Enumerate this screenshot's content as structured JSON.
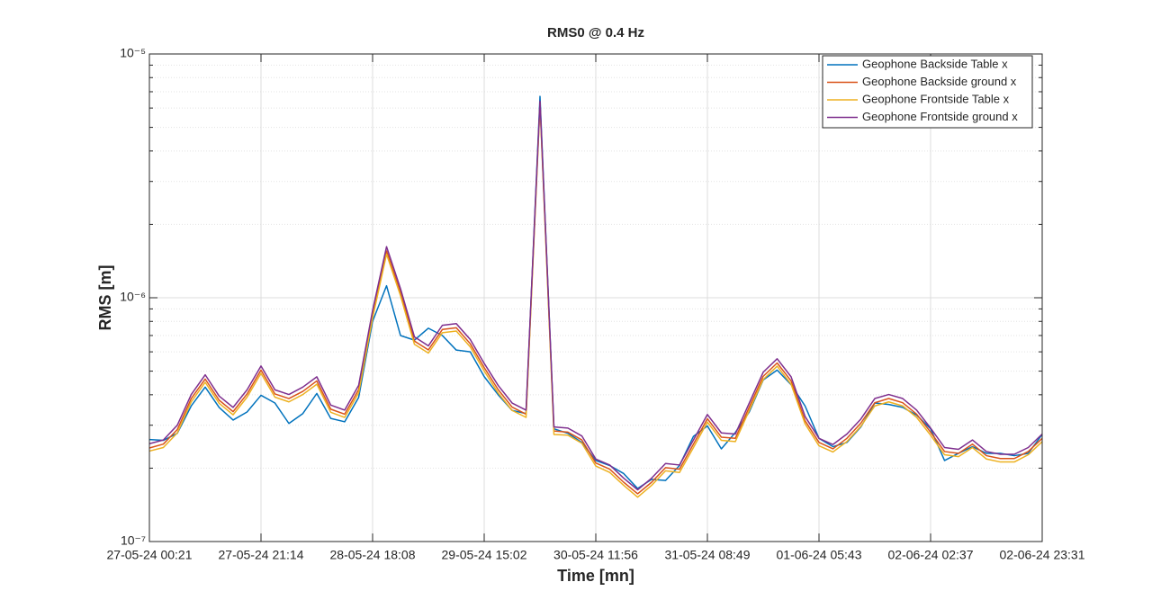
{
  "chart_data": {
    "type": "line",
    "title": "RMS0 @ 0.4 Hz",
    "xlabel": "Time [mn]",
    "ylabel": "RMS [m]",
    "categories": [
      "27-05-24 00:21",
      null,
      null,
      null,
      null,
      null,
      null,
      null,
      "27-05-24 21:14",
      null,
      null,
      null,
      null,
      null,
      null,
      null,
      "28-05-24 18:08",
      null,
      null,
      null,
      null,
      null,
      null,
      null,
      "29-05-24 15:02",
      null,
      null,
      null,
      null,
      null,
      null,
      null,
      "30-05-24 11:56",
      null,
      null,
      null,
      null,
      null,
      null,
      null,
      "31-05-24 08:49",
      null,
      null,
      null,
      null,
      null,
      null,
      null,
      "01-06-24 05:43",
      null,
      null,
      null,
      null,
      null,
      null,
      null,
      "02-06-24 02:37",
      null,
      null,
      null,
      null,
      null,
      null,
      null,
      "02-06-24 23:31"
    ],
    "series": [
      {
        "name": "Geophone Backside Table x",
        "color": "#0072bd",
        "values": [
          2.62e-07,
          2.6e-07,
          2.78e-07,
          3.6e-07,
          4.3e-07,
          3.55e-07,
          3.15e-07,
          3.4e-07,
          3.98e-07,
          3.7e-07,
          3.05e-07,
          3.35e-07,
          4.05e-07,
          3.2e-07,
          3.1e-07,
          3.9e-07,
          8e-07,
          1.12e-06,
          7e-07,
          6.7e-07,
          7.5e-07,
          7e-07,
          6.1e-07,
          6e-07,
          4.75e-07,
          4e-07,
          3.45e-07,
          3.35e-07,
          6.7e-06,
          2.9e-07,
          2.78e-07,
          2.55e-07,
          2.15e-07,
          2.05e-07,
          1.9e-07,
          1.65e-07,
          1.8e-07,
          1.78e-07,
          2.05e-07,
          2.7e-07,
          2.98e-07,
          2.4e-07,
          2.8e-07,
          3.4e-07,
          4.6e-07,
          5.05e-07,
          4.4e-07,
          3.6e-07,
          2.65e-07,
          2.45e-07,
          2.55e-07,
          2.95e-07,
          3.7e-07,
          3.65e-07,
          3.55e-07,
          3.3e-07,
          2.9e-07,
          2.15e-07,
          2.3e-07,
          2.45e-07,
          2.3e-07,
          2.3e-07,
          2.25e-07,
          2.3e-07,
          2.75e-07
        ]
      },
      {
        "name": "Geophone Backside ground x",
        "color": "#d95319",
        "values": [
          2.42e-07,
          2.51e-07,
          2.88e-07,
          3.86e-07,
          4.64e-07,
          3.8e-07,
          3.41e-07,
          4.03e-07,
          5.05e-07,
          4.03e-07,
          3.86e-07,
          4.13e-07,
          4.56e-07,
          3.49e-07,
          3.33e-07,
          4.2e-07,
          8.53e-07,
          1.556e-06,
          1.05e-06,
          6.64e-07,
          6.11e-07,
          7.41e-07,
          7.53e-07,
          6.48e-07,
          5.17e-07,
          4.2e-07,
          3.56e-07,
          3.33e-07,
          6.3e-06,
          2.84e-07,
          2.81e-07,
          2.61e-07,
          2.1e-07,
          1.98e-07,
          1.75e-07,
          1.57e-07,
          1.75e-07,
          2.01e-07,
          1.98e-07,
          2.51e-07,
          3.19e-07,
          2.68e-07,
          2.65e-07,
          3.56e-07,
          4.76e-07,
          5.4e-07,
          4.56e-07,
          3.13e-07,
          2.55e-07,
          2.4e-07,
          2.65e-07,
          3.06e-07,
          3.71e-07,
          3.86e-07,
          3.71e-07,
          3.33e-07,
          2.81e-07,
          2.34e-07,
          2.3e-07,
          2.51e-07,
          2.25e-07,
          2.19e-07,
          2.19e-07,
          2.34e-07,
          2.65e-07
        ]
      },
      {
        "name": "Geophone Frontside Table x",
        "color": "#edb120",
        "values": [
          2.35e-07,
          2.43e-07,
          2.79e-07,
          3.74e-07,
          4.5e-07,
          3.69e-07,
          3.31e-07,
          3.91e-07,
          4.9e-07,
          3.91e-07,
          3.74e-07,
          4.01e-07,
          4.42e-07,
          3.39e-07,
          3.23e-07,
          4.07e-07,
          8.27e-07,
          1.51e-06,
          1.02e-06,
          6.44e-07,
          5.93e-07,
          7.19e-07,
          7.3e-07,
          6.29e-07,
          5.01e-07,
          4.07e-07,
          3.45e-07,
          3.23e-07,
          6.2e-06,
          2.75e-07,
          2.73e-07,
          2.53e-07,
          2.04e-07,
          1.92e-07,
          1.7e-07,
          1.52e-07,
          1.7e-07,
          1.95e-07,
          1.92e-07,
          2.43e-07,
          3.09e-07,
          2.6e-07,
          2.57e-07,
          3.45e-07,
          4.62e-07,
          5.24e-07,
          4.42e-07,
          3.04e-07,
          2.47e-07,
          2.33e-07,
          2.57e-07,
          2.97e-07,
          3.6e-07,
          3.74e-07,
          3.6e-07,
          3.23e-07,
          2.73e-07,
          2.27e-07,
          2.23e-07,
          2.43e-07,
          2.18e-07,
          2.12e-07,
          2.12e-07,
          2.27e-07,
          2.57e-07
        ]
      },
      {
        "name": "Geophone Frontside ground x",
        "color": "#7e2f8e",
        "values": [
          2.52e-07,
          2.61e-07,
          3e-07,
          4.01e-07,
          4.83e-07,
          3.95e-07,
          3.55e-07,
          4.19e-07,
          5.25e-07,
          4.19e-07,
          4.01e-07,
          4.3e-07,
          4.74e-07,
          3.63e-07,
          3.46e-07,
          4.37e-07,
          8.87e-07,
          1.62e-06,
          1.09e-06,
          6.91e-07,
          6.35e-07,
          7.71e-07,
          7.83e-07,
          6.74e-07,
          5.38e-07,
          4.37e-07,
          3.7e-07,
          3.46e-07,
          6.4e-06,
          2.95e-07,
          2.92e-07,
          2.71e-07,
          2.18e-07,
          2.06e-07,
          1.82e-07,
          1.63e-07,
          1.82e-07,
          2.09e-07,
          2.06e-07,
          2.61e-07,
          3.32e-07,
          2.79e-07,
          2.76e-07,
          3.7e-07,
          4.95e-07,
          5.62e-07,
          4.74e-07,
          3.26e-07,
          2.65e-07,
          2.5e-07,
          2.76e-07,
          3.18e-07,
          3.86e-07,
          4.01e-07,
          3.86e-07,
          3.46e-07,
          2.92e-07,
          2.43e-07,
          2.39e-07,
          2.61e-07,
          2.34e-07,
          2.28e-07,
          2.28e-07,
          2.43e-07,
          2.76e-07
        ]
      }
    ],
    "ylim": [
      1e-07,
      1e-05
    ],
    "yscale": "log",
    "yticks": [
      {
        "value": 1e-07,
        "label": "10⁻⁷"
      },
      {
        "value": 1e-06,
        "label": "10⁻⁶"
      },
      {
        "value": 1e-05,
        "label": "10⁻⁵"
      }
    ],
    "grid": true,
    "legend": "upper right"
  }
}
